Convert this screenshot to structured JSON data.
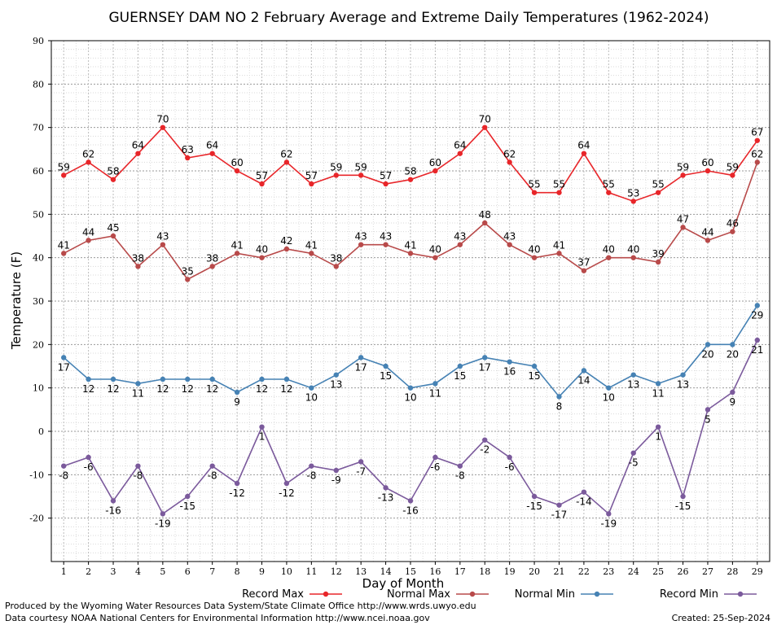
{
  "chart_data": {
    "type": "line",
    "title": "GUERNSEY DAM NO 2 February Average and Extreme Daily Temperatures (1962-2024)",
    "xlabel": "Day of Month",
    "ylabel": "Temperature (F)",
    "ylim": [
      -30,
      90
    ],
    "yticks": [
      -20,
      -10,
      0,
      10,
      20,
      30,
      40,
      50,
      60,
      70,
      80,
      90
    ],
    "x": [
      1,
      2,
      3,
      4,
      5,
      6,
      7,
      8,
      9,
      10,
      11,
      12,
      13,
      14,
      15,
      16,
      17,
      18,
      19,
      20,
      21,
      22,
      23,
      24,
      25,
      26,
      27,
      28,
      29
    ],
    "grid": true,
    "legend_position": "bottom",
    "series": [
      {
        "name": "Record Max",
        "color": "#e8262a",
        "label_pos": "above",
        "values": [
          59,
          62,
          58,
          64,
          70,
          63,
          64,
          60,
          57,
          62,
          57,
          59,
          59,
          57,
          58,
          60,
          64,
          70,
          62,
          55,
          55,
          64,
          55,
          53,
          55,
          59,
          60,
          59,
          67
        ]
      },
      {
        "name": "Normal Max",
        "color": "#b84a4a",
        "label_pos": "above",
        "values": [
          41,
          44,
          45,
          38,
          43,
          35,
          38,
          41,
          40,
          42,
          41,
          38,
          43,
          43,
          41,
          40,
          43,
          48,
          43,
          40,
          41,
          37,
          40,
          40,
          39,
          47,
          44,
          46,
          62
        ]
      },
      {
        "name": "Normal Min",
        "color": "#4682b4",
        "label_pos": "below",
        "values": [
          17,
          12,
          12,
          11,
          12,
          12,
          12,
          9,
          12,
          12,
          10,
          13,
          17,
          15,
          10,
          11,
          15,
          17,
          16,
          15,
          8,
          14,
          10,
          13,
          11,
          13,
          20,
          20,
          29
        ]
      },
      {
        "name": "Record Min",
        "color": "#7b5a9c",
        "label_pos": "below",
        "values": [
          -8,
          -6,
          -16,
          -8,
          -19,
          -15,
          -8,
          -12,
          1,
          -12,
          -8,
          -9,
          -7,
          -13,
          -16,
          -6,
          -8,
          -2,
          -6,
          -15,
          -17,
          -14,
          -19,
          -5,
          1,
          -15,
          5,
          9,
          21
        ]
      }
    ]
  },
  "footer": {
    "line1": "Produced by the Wyoming Water Resources Data System/State Climate Office http://www.wrds.uwyo.edu",
    "line2": "Data courtesy NOAA National Centers for Environmental Information http://www.ncei.noaa.gov",
    "created": "Created:  25-Sep-2024"
  }
}
